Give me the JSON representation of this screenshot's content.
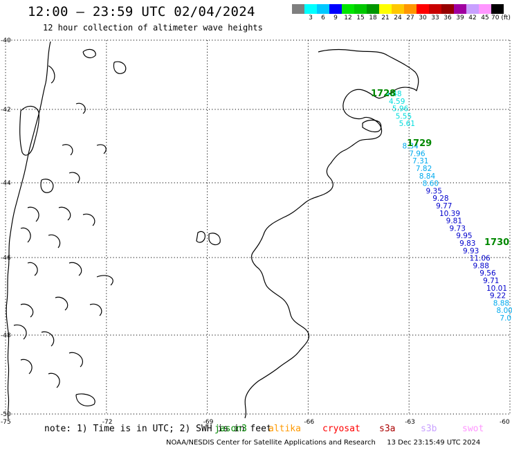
{
  "header": {
    "title": "12:00 – 23:59 UTC 02/04/2024",
    "subtitle": "12 hour collection of altimeter wave heights"
  },
  "colorbar": {
    "colors": [
      "#7f7f7f",
      "#00ffff",
      "#00c8ff",
      "#0000ff",
      "#00e600",
      "#00c800",
      "#009600",
      "#ffff00",
      "#ffc800",
      "#ff9600",
      "#ff0000",
      "#c80000",
      "#960000",
      "#a000a0",
      "#c8a0ff",
      "#ff96ff",
      "#000000"
    ],
    "labels": [
      "",
      "3",
      "6",
      "9",
      "12",
      "15",
      "18",
      "21",
      "24",
      "27",
      "30",
      "33",
      "36",
      "39",
      "42",
      "45",
      "70 (ft)"
    ]
  },
  "axes": {
    "lat_labels": [
      "-40",
      "-42",
      "-44",
      "-46",
      "-48",
      "-50"
    ],
    "lon_labels": [
      "-75",
      "-72",
      "-69",
      "-66",
      "-63",
      "-60"
    ]
  },
  "passes": [
    {
      "name": "1728",
      "color": "#008800"
    },
    {
      "name": "1729",
      "color": "#008800"
    },
    {
      "name": "1730",
      "color": "#008800"
    }
  ],
  "observations": [
    {
      "label": "4.48",
      "lon": -63.7,
      "lat": -41.5,
      "color": "#00dddd"
    },
    {
      "label": "4.59",
      "lon": -63.6,
      "lat": -41.7,
      "color": "#00dddd"
    },
    {
      "label": "5.96",
      "lon": -63.5,
      "lat": -41.9,
      "color": "#00dddd"
    },
    {
      "label": "5.55",
      "lon": -63.4,
      "lat": -42.1,
      "color": "#00dddd"
    },
    {
      "label": "5.61",
      "lon": -63.3,
      "lat": -42.3,
      "color": "#00dddd"
    },
    {
      "label": "8.34",
      "lon": -63.2,
      "lat": -42.9,
      "color": "#00aaee"
    },
    {
      "label": "7.96",
      "lon": -63.0,
      "lat": -43.1,
      "color": "#00aaee"
    },
    {
      "label": "7.31",
      "lon": -62.9,
      "lat": -43.3,
      "color": "#00aaee"
    },
    {
      "label": "7.82",
      "lon": -62.8,
      "lat": -43.5,
      "color": "#00aaee"
    },
    {
      "label": "8.84",
      "lon": -62.7,
      "lat": -43.7,
      "color": "#00aaee"
    },
    {
      "label": "8.60",
      "lon": -62.6,
      "lat": -43.9,
      "color": "#00aaee"
    },
    {
      "label": "9.35",
      "lon": -62.5,
      "lat": -44.1,
      "color": "#0000cc"
    },
    {
      "label": "9.28",
      "lon": -62.3,
      "lat": -44.3,
      "color": "#0000cc"
    },
    {
      "label": "9.77",
      "lon": -62.2,
      "lat": -44.5,
      "color": "#0000cc"
    },
    {
      "label": "10.39",
      "lon": -62.1,
      "lat": -44.7,
      "color": "#0000cc"
    },
    {
      "label": "9.81",
      "lon": -61.9,
      "lat": -44.9,
      "color": "#0000cc"
    },
    {
      "label": "9.73",
      "lon": -61.8,
      "lat": -45.1,
      "color": "#0000cc"
    },
    {
      "label": "9.95",
      "lon": -61.6,
      "lat": -45.3,
      "color": "#0000cc"
    },
    {
      "label": "9.83",
      "lon": -61.5,
      "lat": -45.5,
      "color": "#0000cc"
    },
    {
      "label": "9.93",
      "lon": -61.4,
      "lat": -45.7,
      "color": "#0000cc"
    },
    {
      "label": "11.06",
      "lon": -61.2,
      "lat": -45.9,
      "color": "#0000cc"
    },
    {
      "label": "9.88",
      "lon": -61.1,
      "lat": -46.1,
      "color": "#0000cc"
    },
    {
      "label": "9.56",
      "lon": -60.9,
      "lat": -46.3,
      "color": "#0000cc"
    },
    {
      "label": "9.71",
      "lon": -60.8,
      "lat": -46.5,
      "color": "#0000cc"
    },
    {
      "label": "10.01",
      "lon": -60.7,
      "lat": -46.7,
      "color": "#0000cc"
    },
    {
      "label": "9.22",
      "lon": -60.6,
      "lat": -46.9,
      "color": "#0000cc"
    },
    {
      "label": "8.88",
      "lon": -60.5,
      "lat": -47.1,
      "color": "#00aaee"
    },
    {
      "label": "8.00",
      "lon": -60.4,
      "lat": -47.3,
      "color": "#00aaee"
    },
    {
      "label": "7.0",
      "lon": -60.3,
      "lat": -47.5,
      "color": "#00aaee"
    }
  ],
  "note": {
    "prefix": "note: 1) Time is in UTC; 2) SWH is in feet",
    "satellites": [
      {
        "name": "jason3",
        "color": "#008800"
      },
      {
        "name": "altika",
        "color": "#ff9900"
      },
      {
        "name": "cryosat",
        "color": "#ff0000"
      },
      {
        "name": "s3a",
        "color": "#aa0000"
      },
      {
        "name": "s3b",
        "color": "#c8a0ff"
      },
      {
        "name": "swot",
        "color": "#ff96ff"
      }
    ]
  },
  "footer": {
    "credit": "NOAA/NESDIS Center for Satellite Applications and Research",
    "timestamp": "13 Dec 23:15:49 UTC 2024"
  }
}
